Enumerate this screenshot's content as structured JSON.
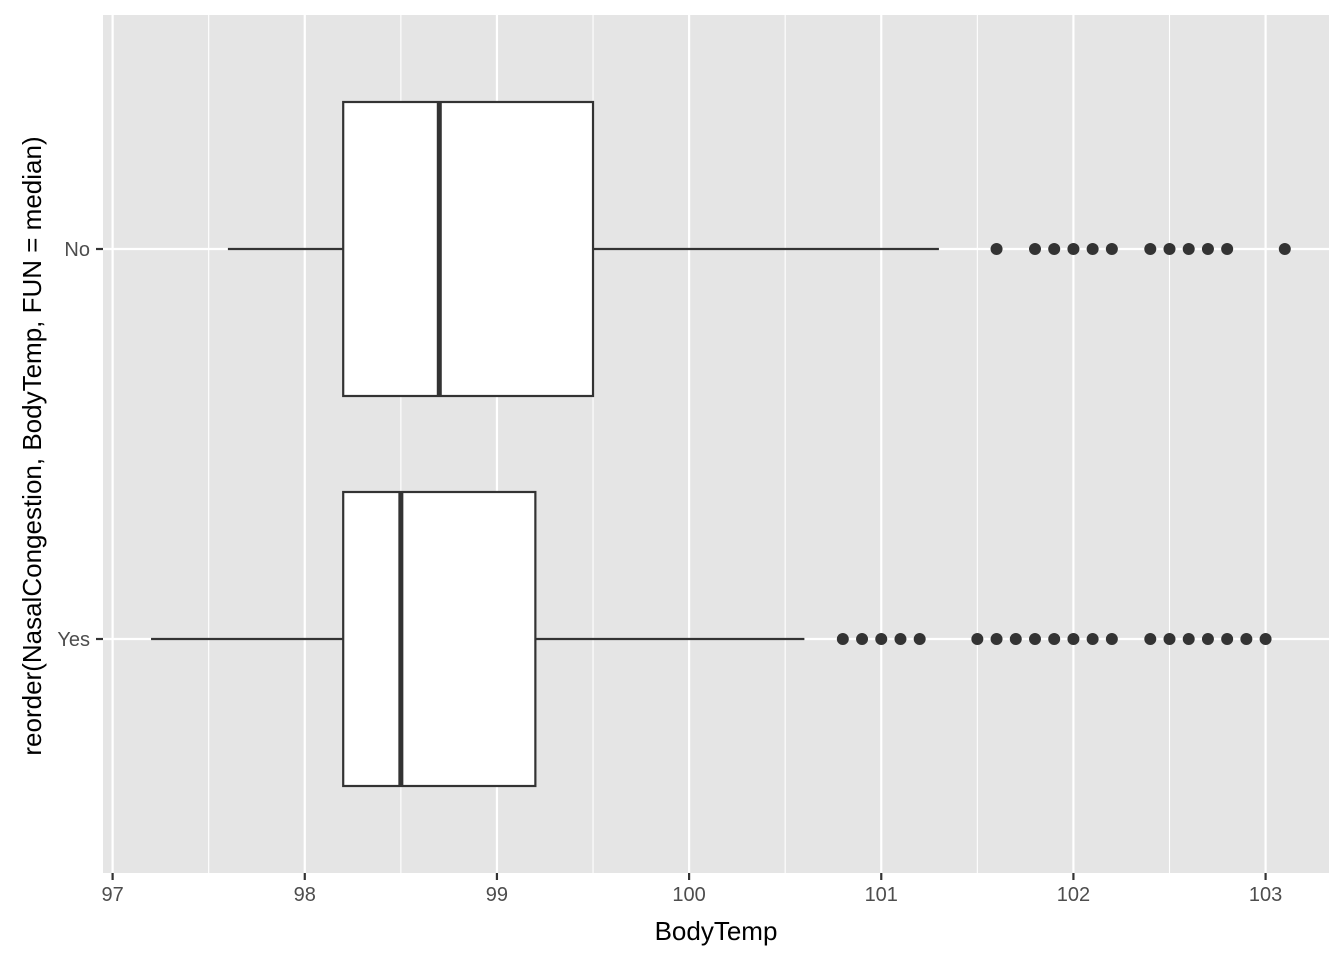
{
  "chart_data": {
    "type": "boxplot",
    "orientation": "horizontal",
    "xlabel": "BodyTemp",
    "ylabel": "reorder(NasalCongestion, BodyTemp, FUN = median)",
    "xlim": [
      96.95,
      103.33
    ],
    "x_ticks": [
      97,
      98,
      99,
      100,
      101,
      102,
      103
    ],
    "x_tick_labels": [
      "97",
      "98",
      "99",
      "100",
      "101",
      "102",
      "103"
    ],
    "categories": [
      "No",
      "Yes"
    ],
    "grid": true,
    "legend": "none",
    "colors": {
      "panel_background": "#e5e5e5",
      "grid": "#ffffff",
      "box_fill": "#ffffff",
      "box_stroke": "#333333",
      "outlier": "#333333"
    },
    "boxes": [
      {
        "category": "No",
        "whisker_low": 97.6,
        "q1": 98.2,
        "median": 98.7,
        "q3": 99.5,
        "whisker_high": 101.3,
        "outliers": [
          101.6,
          101.8,
          101.9,
          102.0,
          102.1,
          102.2,
          102.4,
          102.5,
          102.6,
          102.7,
          102.8,
          103.1
        ]
      },
      {
        "category": "Yes",
        "whisker_low": 97.2,
        "q1": 98.2,
        "median": 98.5,
        "q3": 99.2,
        "whisker_high": 100.6,
        "outliers": [
          100.8,
          100.9,
          101.0,
          101.1,
          101.2,
          101.5,
          101.6,
          101.7,
          101.8,
          101.9,
          102.0,
          102.1,
          102.2,
          102.4,
          102.5,
          102.6,
          102.7,
          102.8,
          102.9,
          103.0
        ]
      }
    ]
  }
}
